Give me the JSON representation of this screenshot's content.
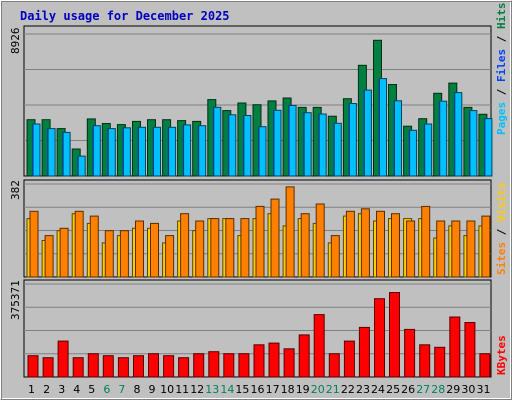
{
  "title": "Daily usage for December 2025",
  "colors": {
    "background": "#c0c0c0",
    "title": "#0000c0",
    "hits": "#008040",
    "files": "#0040ff",
    "pages": "#00c0ff",
    "visits": "#ffcc00",
    "sites": "#ff8000",
    "kbytes": "#ff0000",
    "weekend_day": "#00805c",
    "weekday": "#000000"
  },
  "chart_data": [
    {
      "type": "bar",
      "title": "Daily usage for December 2025",
      "categories": [
        "1",
        "2",
        "3",
        "4",
        "5",
        "6",
        "7",
        "8",
        "9",
        "10",
        "11",
        "12",
        "13",
        "14",
        "15",
        "16",
        "17",
        "18",
        "19",
        "20",
        "21",
        "22",
        "23",
        "24",
        "25",
        "26",
        "27",
        "28",
        "29",
        "30",
        "31"
      ],
      "weekend_days": [
        "6",
        "7",
        "13",
        "14",
        "20",
        "21",
        "27",
        "28"
      ],
      "ylabel_max": "8926",
      "ylim": [
        0,
        8926
      ],
      "grid": true,
      "series": [
        {
          "name": "Hits",
          "color": "#008040",
          "values": [
            3540,
            3540,
            2980,
            1700,
            3590,
            3300,
            3230,
            3430,
            3540,
            3540,
            3480,
            3430,
            4800,
            4110,
            4590,
            4480,
            4720,
            4900,
            4310,
            4310,
            3760,
            4860,
            6960,
            8530,
            5750,
            3130,
            3600,
            5200,
            5840,
            4310,
            3880
          ]
        },
        {
          "name": "Files",
          "color": "#0040ff",
          "values": [
            3270,
            2980,
            2740,
            1250,
            3160,
            2980,
            3030,
            3060,
            3060,
            3060,
            3210,
            3160,
            4320,
            3850,
            3800,
            3100,
            4130,
            4430,
            3980,
            3900,
            3310,
            4560,
            5400,
            6120,
            4730,
            2870,
            3270,
            4700,
            5240,
            4110,
            3610
          ]
        },
        {
          "name": "Pages",
          "color": "#00c0ff",
          "values": [
            3270,
            2980,
            2740,
            1250,
            3160,
            2980,
            3030,
            3060,
            3060,
            3060,
            3210,
            3160,
            4320,
            3850,
            3800,
            3100,
            4130,
            4430,
            3980,
            3900,
            3310,
            4560,
            5400,
            6120,
            4730,
            2870,
            3270,
            4700,
            5240,
            4110,
            3610
          ]
        }
      ]
    },
    {
      "type": "bar",
      "categories": [
        "1",
        "2",
        "3",
        "4",
        "5",
        "6",
        "7",
        "8",
        "9",
        "10",
        "11",
        "12",
        "13",
        "14",
        "15",
        "16",
        "17",
        "18",
        "19",
        "20",
        "21",
        "22",
        "23",
        "24",
        "25",
        "26",
        "27",
        "28",
        "29",
        "30",
        "31"
      ],
      "ylabel_max": "382",
      "ylim": [
        0,
        382
      ],
      "grid": true,
      "series": [
        {
          "name": "Visits",
          "color": "#ffcc00",
          "values": [
            240,
            150,
            190,
            260,
            220,
            140,
            170,
            200,
            200,
            140,
            230,
            190,
            240,
            240,
            170,
            240,
            260,
            210,
            240,
            220,
            140,
            250,
            260,
            230,
            240,
            240,
            240,
            160,
            210,
            170,
            210
          ]
        },
        {
          "name": "Sites",
          "color": "#ff8000",
          "values": [
            270,
            170,
            200,
            270,
            250,
            190,
            190,
            230,
            220,
            170,
            260,
            230,
            240,
            240,
            240,
            290,
            320,
            370,
            260,
            300,
            170,
            270,
            280,
            270,
            260,
            230,
            290,
            230,
            230,
            230,
            250
          ]
        }
      ]
    },
    {
      "type": "bar",
      "categories": [
        "1",
        "2",
        "3",
        "4",
        "5",
        "6",
        "7",
        "8",
        "9",
        "10",
        "11",
        "12",
        "13",
        "14",
        "15",
        "16",
        "17",
        "18",
        "19",
        "20",
        "21",
        "22",
        "23",
        "24",
        "25",
        "26",
        "27",
        "28",
        "29",
        "30",
        "31"
      ],
      "ylabel_max": "375371",
      "ylim": [
        0,
        375371
      ],
      "grid": true,
      "series": [
        {
          "name": "KBytes",
          "color": "#ff0000",
          "values": [
            86000,
            78000,
            145000,
            78000,
            94000,
            86000,
            78000,
            86000,
            94000,
            86000,
            78000,
            94000,
            102000,
            94000,
            94000,
            130000,
            137000,
            114000,
            170000,
            252000,
            94000,
            145000,
            200000,
            316000,
            341000,
            192000,
            130000,
            120000,
            242000,
            220000,
            94000
          ]
        }
      ]
    }
  ]
}
